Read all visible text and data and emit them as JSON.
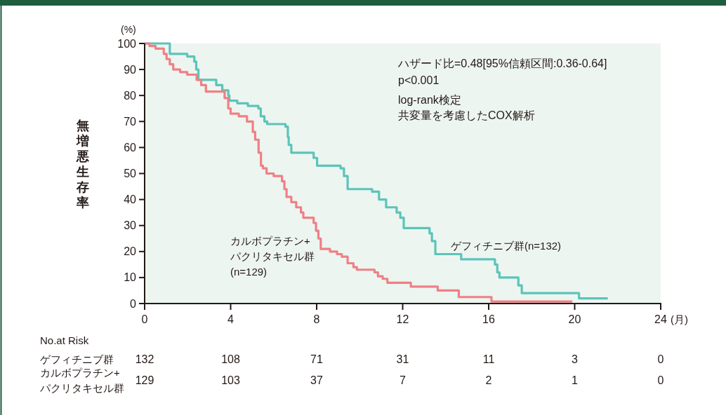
{
  "chart_data": {
    "type": "step",
    "ylabel": "無増悪生存率",
    "xlabel": "(月)",
    "xlim": [
      0,
      24
    ],
    "xticks": [
      0,
      4,
      8,
      12,
      16,
      20,
      24
    ],
    "ylim": [
      0,
      100
    ],
    "yticks": [
      0,
      10,
      20,
      30,
      40,
      50,
      60,
      70,
      80,
      90,
      100
    ],
    "grid": false,
    "series": [
      {
        "color": "#5cc4b9",
        "x": [
          0,
          1.17,
          1.98,
          2.31,
          2.4,
          2.5,
          3.33,
          3.61,
          3.89,
          3.94,
          4.31,
          4.8,
          5.29,
          5.4,
          5.57,
          5.7,
          6.55,
          6.66,
          6.7,
          6.82,
          7.86,
          8.02,
          9.11,
          9.27,
          9.44,
          10.58,
          10.9,
          11.23,
          11.72,
          11.89,
          12.05,
          13.25,
          13.36,
          13.52,
          14.72,
          16.29,
          16.4,
          16.5,
          17.38,
          17.54,
          20.2,
          21.54
        ],
        "values": [
          100,
          96,
          95,
          93,
          90,
          86,
          84,
          82,
          80,
          78,
          77,
          76,
          75,
          72,
          70,
          69,
          68,
          64,
          61,
          58,
          56,
          53,
          52,
          49,
          44,
          43,
          40,
          37,
          35,
          33,
          29,
          27,
          24,
          19,
          17,
          15,
          12,
          10,
          7,
          4,
          2,
          2
        ]
      },
      {
        "color": "#ef8086",
        "x": [
          0,
          0.23,
          0.51,
          0.89,
          1.02,
          1.17,
          1.33,
          1.65,
          1.98,
          2.42,
          2.63,
          2.85,
          3.72,
          3.89,
          4.0,
          4.38,
          4.76,
          5.03,
          5.14,
          5.3,
          5.41,
          5.5,
          5.67,
          6.0,
          6.39,
          6.5,
          6.6,
          6.82,
          7.05,
          7.27,
          7.38,
          7.86,
          7.97,
          8.08,
          8.19,
          8.62,
          8.95,
          9.17,
          9.44,
          9.71,
          9.87,
          10.69,
          10.85,
          11.07,
          11.29,
          12.38,
          13.63,
          14.61,
          16.13,
          19.89
        ],
        "values": [
          100,
          99,
          98,
          96,
          94,
          92,
          90,
          89,
          88,
          86,
          84,
          81.5,
          79,
          75,
          73,
          72,
          70,
          66,
          63,
          58,
          53,
          52,
          50,
          49,
          47,
          44,
          41,
          39,
          37,
          35,
          33,
          31,
          28,
          25,
          21,
          20,
          19,
          18,
          15.5,
          14,
          13,
          12,
          10.5,
          9.5,
          8,
          6.5,
          5,
          2.5,
          0.8,
          0.8
        ]
      }
    ],
    "annotations": [
      "(%)",
      "ハザード比=0.48[95%信頼区間:0.36-0.64]",
      "p<0.001",
      "log-rank検定",
      "共変量を考慮したCOX解析",
      "ゲフィチニブ群(n=132)",
      "カルボプラチン+",
      "パクリタキセル群",
      "(n=129)",
      "No.at Risk",
      "ゲフィチニブ群",
      "カルボプラチン+",
      "パクリタキセル群",
      "132",
      "108",
      "71",
      "31",
      "11",
      "3",
      "0",
      "129",
      "103",
      "37",
      "7",
      "2",
      "1",
      "0"
    ]
  }
}
